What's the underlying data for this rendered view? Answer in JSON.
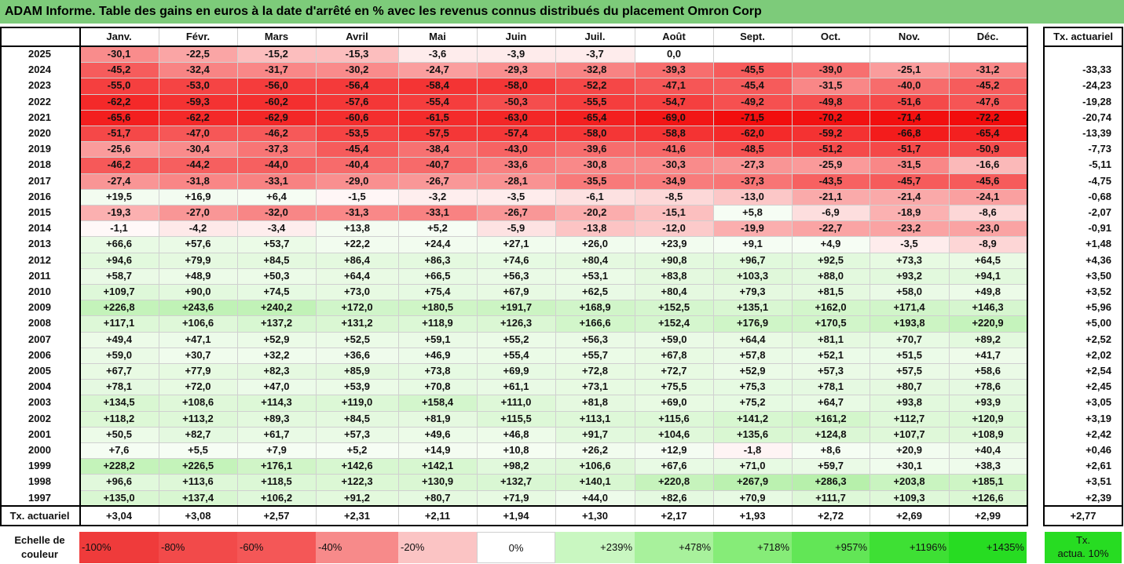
{
  "title": "ADAM Informe. Table des gains en euros à la date d'arrêté en % avec les revenus connus distribués du placement Omron Corp",
  "chart_data": {
    "type": "heatmap",
    "months": [
      "Janv.",
      "Févr.",
      "Mars",
      "Avril",
      "Mai",
      "Juin",
      "Juil.",
      "Août",
      "Sept.",
      "Oct.",
      "Nov.",
      "Déc."
    ],
    "rate_column_header": "Tx. actuariel",
    "rows": [
      {
        "year": "2025",
        "values": [
          "-30,1",
          "-22,5",
          "-15,2",
          "-15,3",
          "-3,6",
          "-3,9",
          "-3,7",
          "0,0",
          "",
          "",
          "",
          ""
        ],
        "rate": ""
      },
      {
        "year": "2024",
        "values": [
          "-45,2",
          "-32,4",
          "-31,7",
          "-30,2",
          "-24,7",
          "-29,3",
          "-32,8",
          "-39,3",
          "-45,5",
          "-39,0",
          "-25,1",
          "-31,2"
        ],
        "rate": "-33,33"
      },
      {
        "year": "2023",
        "values": [
          "-55,0",
          "-53,0",
          "-56,0",
          "-56,4",
          "-58,4",
          "-58,0",
          "-52,2",
          "-47,1",
          "-45,4",
          "-31,5",
          "-40,0",
          "-45,2"
        ],
        "rate": "-24,23"
      },
      {
        "year": "2022",
        "values": [
          "-62,2",
          "-59,3",
          "-60,2",
          "-57,6",
          "-55,4",
          "-50,3",
          "-55,5",
          "-54,7",
          "-49,2",
          "-49,8",
          "-51,6",
          "-47,6"
        ],
        "rate": "-19,28"
      },
      {
        "year": "2021",
        "values": [
          "-65,6",
          "-62,2",
          "-62,9",
          "-60,6",
          "-61,5",
          "-63,0",
          "-65,4",
          "-69,0",
          "-71,5",
          "-70,2",
          "-71,4",
          "-72,2"
        ],
        "rate": "-20,74"
      },
      {
        "year": "2020",
        "values": [
          "-51,7",
          "-47,0",
          "-46,2",
          "-53,5",
          "-57,5",
          "-57,4",
          "-58,0",
          "-58,8",
          "-62,0",
          "-59,2",
          "-66,8",
          "-65,4"
        ],
        "rate": "-13,39"
      },
      {
        "year": "2019",
        "values": [
          "-25,6",
          "-30,4",
          "-37,3",
          "-45,4",
          "-38,4",
          "-43,0",
          "-39,6",
          "-41,6",
          "-48,5",
          "-51,2",
          "-51,7",
          "-50,9"
        ],
        "rate": "-7,73"
      },
      {
        "year": "2018",
        "values": [
          "-46,2",
          "-44,2",
          "-44,0",
          "-40,4",
          "-40,7",
          "-33,6",
          "-30,8",
          "-30,3",
          "-27,3",
          "-25,9",
          "-31,5",
          "-16,6"
        ],
        "rate": "-5,11"
      },
      {
        "year": "2017",
        "values": [
          "-27,4",
          "-31,8",
          "-33,1",
          "-29,0",
          "-26,7",
          "-28,1",
          "-35,5",
          "-34,9",
          "-37,3",
          "-43,5",
          "-45,7",
          "-45,6"
        ],
        "rate": "-4,75"
      },
      {
        "year": "2016",
        "values": [
          "+19,5",
          "+16,9",
          "+6,4",
          "-1,5",
          "-3,2",
          "-3,5",
          "-6,1",
          "-8,5",
          "-13,0",
          "-21,1",
          "-21,4",
          "-24,1"
        ],
        "rate": "-0,68"
      },
      {
        "year": "2015",
        "values": [
          "-19,3",
          "-27,0",
          "-32,0",
          "-31,3",
          "-33,1",
          "-26,7",
          "-20,2",
          "-15,1",
          "+5,8",
          "-6,9",
          "-18,9",
          "-8,6"
        ],
        "rate": "-2,07"
      },
      {
        "year": "2014",
        "values": [
          "-1,1",
          "-4,2",
          "-3,4",
          "+13,8",
          "+5,2",
          "-5,9",
          "-13,8",
          "-12,0",
          "-19,9",
          "-22,7",
          "-23,2",
          "-23,0"
        ],
        "rate": "-0,91"
      },
      {
        "year": "2013",
        "values": [
          "+66,6",
          "+57,6",
          "+53,7",
          "+22,2",
          "+24,4",
          "+27,1",
          "+26,0",
          "+23,9",
          "+9,1",
          "+4,9",
          "-3,5",
          "-8,9"
        ],
        "rate": "+1,48"
      },
      {
        "year": "2012",
        "values": [
          "+94,6",
          "+79,9",
          "+84,5",
          "+86,4",
          "+86,3",
          "+74,6",
          "+80,4",
          "+90,8",
          "+96,7",
          "+92,5",
          "+73,3",
          "+64,5"
        ],
        "rate": "+4,36"
      },
      {
        "year": "2011",
        "values": [
          "+58,7",
          "+48,9",
          "+50,3",
          "+64,4",
          "+66,5",
          "+56,3",
          "+53,1",
          "+83,8",
          "+103,3",
          "+88,0",
          "+93,2",
          "+94,1"
        ],
        "rate": "+3,50"
      },
      {
        "year": "2010",
        "values": [
          "+109,7",
          "+90,0",
          "+74,5",
          "+73,0",
          "+75,4",
          "+67,9",
          "+62,5",
          "+80,4",
          "+79,3",
          "+81,5",
          "+58,0",
          "+49,8"
        ],
        "rate": "+3,52"
      },
      {
        "year": "2009",
        "values": [
          "+226,8",
          "+243,6",
          "+240,2",
          "+172,0",
          "+180,5",
          "+191,7",
          "+168,9",
          "+152,5",
          "+135,1",
          "+162,0",
          "+171,4",
          "+146,3"
        ],
        "rate": "+5,96"
      },
      {
        "year": "2008",
        "values": [
          "+117,1",
          "+106,6",
          "+137,2",
          "+131,2",
          "+118,9",
          "+126,3",
          "+166,6",
          "+152,4",
          "+176,9",
          "+170,5",
          "+193,8",
          "+220,9"
        ],
        "rate": "+5,00"
      },
      {
        "year": "2007",
        "values": [
          "+49,4",
          "+47,1",
          "+52,9",
          "+52,5",
          "+59,1",
          "+55,2",
          "+56,3",
          "+59,0",
          "+64,4",
          "+81,1",
          "+70,7",
          "+89,2"
        ],
        "rate": "+2,52"
      },
      {
        "year": "2006",
        "values": [
          "+59,0",
          "+30,7",
          "+32,2",
          "+36,6",
          "+46,9",
          "+55,4",
          "+55,7",
          "+67,8",
          "+57,8",
          "+52,1",
          "+51,5",
          "+41,7"
        ],
        "rate": "+2,02"
      },
      {
        "year": "2005",
        "values": [
          "+67,7",
          "+77,9",
          "+82,3",
          "+85,9",
          "+73,8",
          "+69,9",
          "+72,8",
          "+72,7",
          "+52,9",
          "+57,3",
          "+57,5",
          "+58,6"
        ],
        "rate": "+2,54"
      },
      {
        "year": "2004",
        "values": [
          "+78,1",
          "+72,0",
          "+47,0",
          "+53,9",
          "+70,8",
          "+61,1",
          "+73,1",
          "+75,5",
          "+75,3",
          "+78,1",
          "+80,7",
          "+78,6"
        ],
        "rate": "+2,45"
      },
      {
        "year": "2003",
        "values": [
          "+134,5",
          "+108,6",
          "+114,3",
          "+119,0",
          "+158,4",
          "+111,0",
          "+81,8",
          "+69,0",
          "+75,2",
          "+64,7",
          "+93,8",
          "+93,9"
        ],
        "rate": "+3,05"
      },
      {
        "year": "2002",
        "values": [
          "+118,2",
          "+113,2",
          "+89,3",
          "+84,5",
          "+81,9",
          "+115,5",
          "+113,1",
          "+115,6",
          "+141,2",
          "+161,2",
          "+112,7",
          "+120,9"
        ],
        "rate": "+3,19"
      },
      {
        "year": "2001",
        "values": [
          "+50,5",
          "+82,7",
          "+61,7",
          "+57,3",
          "+49,6",
          "+46,8",
          "+91,7",
          "+104,6",
          "+135,6",
          "+124,8",
          "+107,7",
          "+108,9"
        ],
        "rate": "+2,42"
      },
      {
        "year": "2000",
        "values": [
          "+7,6",
          "+5,5",
          "+7,9",
          "+5,2",
          "+14,9",
          "+10,8",
          "+26,2",
          "+12,9",
          "-1,8",
          "+8,6",
          "+20,9",
          "+40,4"
        ],
        "rate": "+0,46"
      },
      {
        "year": "1999",
        "values": [
          "+228,2",
          "+226,5",
          "+176,1",
          "+142,6",
          "+142,1",
          "+98,2",
          "+106,6",
          "+67,6",
          "+71,0",
          "+59,7",
          "+30,1",
          "+38,3"
        ],
        "rate": "+2,61"
      },
      {
        "year": "1998",
        "values": [
          "+96,6",
          "+113,6",
          "+118,5",
          "+122,3",
          "+130,9",
          "+132,7",
          "+140,1",
          "+220,8",
          "+267,9",
          "+286,3",
          "+203,8",
          "+185,1"
        ],
        "rate": "+3,51"
      },
      {
        "year": "1997",
        "values": [
          "+135,0",
          "+137,4",
          "+106,2",
          "+91,2",
          "+80,7",
          "+71,9",
          "+44,0",
          "+82,6",
          "+70,9",
          "+111,7",
          "+109,3",
          "+126,6"
        ],
        "rate": "+2,39"
      }
    ],
    "footer": {
      "label": "Tx. actuariel",
      "values": [
        "+3,04",
        "+3,08",
        "+2,57",
        "+2,31",
        "+2,11",
        "+1,94",
        "+1,30",
        "+2,17",
        "+1,93",
        "+2,72",
        "+2,69",
        "+2,99"
      ],
      "rate": "+2,77"
    },
    "color_scale": {
      "label_line1": "Echelle de",
      "label_line2": "couleur",
      "steps": [
        {
          "text": "-100%",
          "color": "#ef3b3b"
        },
        {
          "text": "-80%",
          "color": "#f24a4a"
        },
        {
          "text": "-60%",
          "color": "#f45757"
        },
        {
          "text": "-40%",
          "color": "#f78a8a"
        },
        {
          "text": "-20%",
          "color": "#fbc4c4"
        },
        {
          "text": "0%",
          "color": "#ffffff"
        },
        {
          "text": "+239%",
          "color": "#c9f7c1"
        },
        {
          "text": "+478%",
          "color": "#a8f19c"
        },
        {
          "text": "+718%",
          "color": "#86ec78"
        },
        {
          "text": "+957%",
          "color": "#62e656"
        },
        {
          "text": "+1196%",
          "color": "#3ee034"
        },
        {
          "text": "+1435%",
          "color": "#27dc22"
        }
      ],
      "target_label_line1": "Tx.",
      "target_label_line2": "actua. 10%",
      "target_color": "#27dc22"
    }
  }
}
